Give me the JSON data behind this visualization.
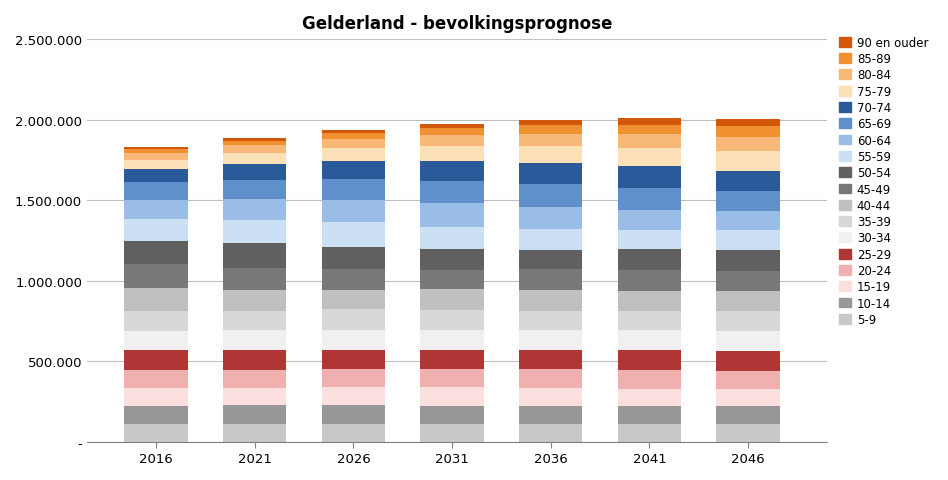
{
  "title": "Gelderland - bevolkingsprognose",
  "years": [
    2016,
    2021,
    2026,
    2031,
    2036,
    2041,
    2046
  ],
  "age_groups": [
    "5-9",
    "10-14",
    "15-19",
    "20-24",
    "25-29",
    "30-34",
    "35-39",
    "40-44",
    "45-49",
    "50-54",
    "55-59",
    "60-64",
    "65-69",
    "70-74",
    "75-79",
    "80-84",
    "85-89",
    "90 en ouder"
  ],
  "colors": [
    "#c8c8c8",
    "#989898",
    "#fce0e0",
    "#f0b0b0",
    "#b03535",
    "#f0f0f0",
    "#d8d8d8",
    "#c0c0c0",
    "#787878",
    "#606060",
    "#cce0f5",
    "#9abde8",
    "#6090cc",
    "#2a5a9a",
    "#fce0b8",
    "#f8b878",
    "#f09030",
    "#d05808"
  ],
  "data": {
    "5-9": [
      109000,
      112000,
      111000,
      108000,
      107000,
      108000,
      108000
    ],
    "10-14": [
      110000,
      113000,
      115000,
      114000,
      111000,
      110000,
      110000
    ],
    "15-19": [
      112000,
      110000,
      113000,
      115000,
      114000,
      111000,
      109000
    ],
    "20-24": [
      116000,
      112000,
      111000,
      114000,
      116000,
      115000,
      112000
    ],
    "25-29": [
      122000,
      124000,
      120000,
      119000,
      122000,
      124000,
      122000
    ],
    "30-34": [
      118000,
      124000,
      126000,
      122000,
      121000,
      124000,
      126000
    ],
    "35-39": [
      126000,
      119000,
      125000,
      127000,
      123000,
      122000,
      125000
    ],
    "40-44": [
      138000,
      127000,
      120000,
      126000,
      128000,
      124000,
      123000
    ],
    "45-49": [
      152000,
      139000,
      128000,
      121000,
      127000,
      129000,
      125000
    ],
    "50-54": [
      145000,
      153000,
      140000,
      129000,
      122000,
      128000,
      130000
    ],
    "55-59": [
      135000,
      144000,
      152000,
      139000,
      128000,
      121000,
      127000
    ],
    "60-64": [
      120000,
      132000,
      141000,
      149000,
      136000,
      125000,
      118000
    ],
    "65-69": [
      108000,
      116000,
      128000,
      137000,
      145000,
      132000,
      121000
    ],
    "70-74": [
      83000,
      102000,
      111000,
      123000,
      132000,
      140000,
      127000
    ],
    "75-79": [
      58000,
      68000,
      85000,
      93000,
      104000,
      112000,
      119000
    ],
    "80-84": [
      40000,
      46000,
      55000,
      69000,
      76000,
      86000,
      93000
    ],
    "85-89": [
      25000,
      28000,
      33000,
      40000,
      52000,
      58000,
      64000
    ],
    "90 en ouder": [
      15000,
      18000,
      21000,
      25000,
      31000,
      38000,
      44000
    ]
  },
  "ylim": [
    0,
    2500000
  ],
  "yticks": [
    0,
    500000,
    1000000,
    1500000,
    2000000,
    2500000
  ],
  "ytick_labels": [
    "-",
    "500.000",
    "1.000.000",
    "1.500.000",
    "2.000.000",
    "2.500.000"
  ],
  "bar_width": 3.2,
  "xlim": [
    2012.5,
    2050
  ],
  "background_color": "#ffffff",
  "grid_color": "#bfbfbf"
}
